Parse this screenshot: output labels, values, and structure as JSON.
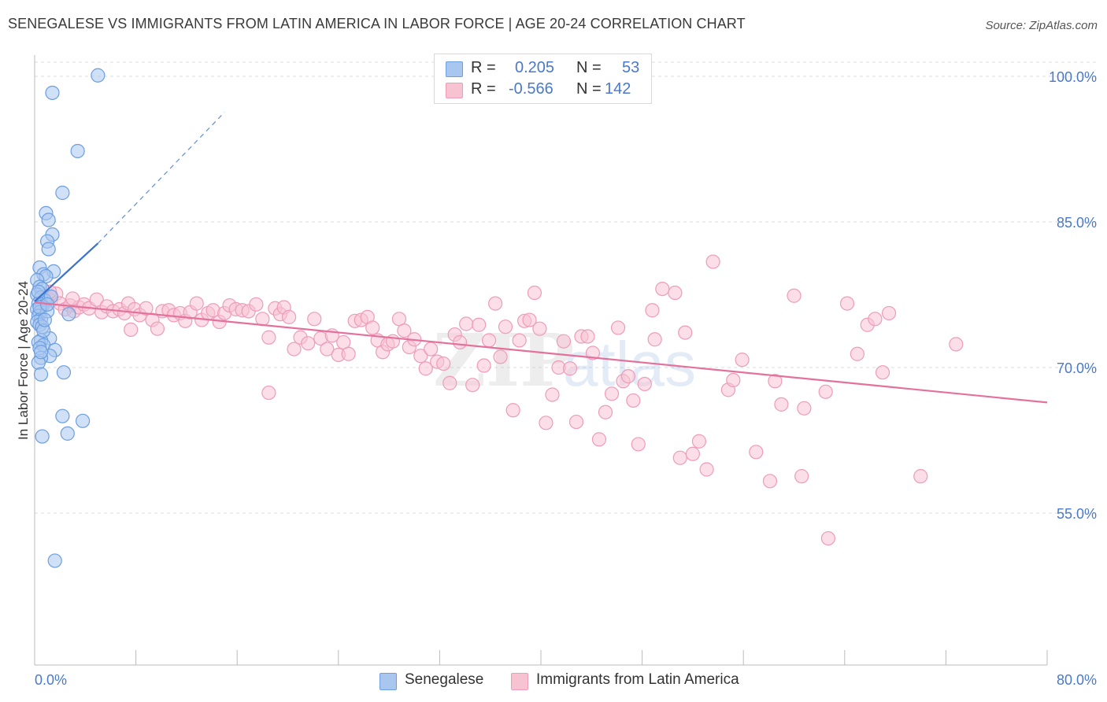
{
  "title": "SENEGALESE VS IMMIGRANTS FROM LATIN AMERICA IN LABOR FORCE | AGE 20-24 CORRELATION CHART",
  "source": "Source: ZipAtlas.com",
  "colors": {
    "senegalese_fill": "#a9c7ee",
    "senegalese_stroke": "#6c9ee0",
    "senegalese_line": "#3a72cc",
    "latin_fill": "#f7c3d3",
    "latin_stroke": "#ee9cb8",
    "latin_line": "#e4719c",
    "axis_text": "#4a79c9",
    "grid": "#dddddd"
  },
  "legend": {
    "rows": [
      {
        "r_label": "R =",
        "r_value": "0.205",
        "n_label": "N =",
        "n_value": "53"
      },
      {
        "r_label": "R =",
        "r_value": "-0.566",
        "n_label": "N =",
        "n_value": "142"
      }
    ]
  },
  "bottom_legend": [
    "Senegalese",
    "Immigrants from Latin America"
  ],
  "chart_data": {
    "type": "scatter",
    "title": "SENEGALESE VS IMMIGRANTS FROM LATIN AMERICA IN LABOR FORCE | AGE 20-24 CORRELATION CHART",
    "xlabel": "",
    "ylabel": "In Labor Force | Age 20-24",
    "xlim": [
      0,
      80
    ],
    "ylim": [
      41,
      102
    ],
    "x_tick_labels": [
      "0.0%",
      "80.0%"
    ],
    "y_tick_labels": [
      "55.0%",
      "70.0%",
      "85.0%",
      "100.0%"
    ],
    "y_ticks": [
      55,
      70,
      85,
      100
    ],
    "grid": true,
    "legend_position": "top-center",
    "series": [
      {
        "name": "Senegalese",
        "r": 0.205,
        "n": 53,
        "trend": {
          "x": [
            0.0,
            5.0
          ],
          "y": [
            76.8,
            82.8
          ],
          "dashed_to": {
            "x": 15.0,
            "y": 96.3
          }
        },
        "points": [
          [
            5.0,
            100.1
          ],
          [
            1.4,
            98.3
          ],
          [
            3.4,
            92.3
          ],
          [
            2.2,
            88.0
          ],
          [
            0.9,
            85.9
          ],
          [
            1.1,
            85.2
          ],
          [
            1.4,
            83.7
          ],
          [
            1.0,
            83.0
          ],
          [
            1.1,
            82.2
          ],
          [
            0.4,
            80.3
          ],
          [
            1.5,
            79.9
          ],
          [
            0.7,
            79.6
          ],
          [
            0.9,
            79.4
          ],
          [
            0.2,
            79.0
          ],
          [
            0.4,
            78.3
          ],
          [
            0.6,
            78.1
          ],
          [
            0.2,
            77.5
          ],
          [
            0.5,
            77.2
          ],
          [
            0.8,
            76.9
          ],
          [
            0.3,
            76.6
          ],
          [
            0.6,
            76.3
          ],
          [
            0.2,
            76.0
          ],
          [
            0.4,
            75.7
          ],
          [
            2.7,
            75.5
          ],
          [
            0.3,
            75.3
          ],
          [
            0.5,
            75.0
          ],
          [
            0.2,
            74.7
          ],
          [
            0.4,
            74.4
          ],
          [
            0.6,
            74.2
          ],
          [
            1.2,
            73.0
          ],
          [
            0.5,
            72.8
          ],
          [
            0.3,
            72.6
          ],
          [
            0.7,
            72.3
          ],
          [
            0.4,
            72.0
          ],
          [
            1.6,
            71.8
          ],
          [
            1.2,
            71.2
          ],
          [
            0.5,
            71.0
          ],
          [
            0.3,
            70.5
          ],
          [
            2.3,
            69.5
          ],
          [
            0.5,
            69.3
          ],
          [
            2.2,
            65.0
          ],
          [
            3.8,
            64.5
          ],
          [
            2.6,
            63.2
          ],
          [
            0.6,
            62.9
          ],
          [
            1.6,
            50.1
          ],
          [
            0.3,
            77.8
          ],
          [
            1.0,
            75.8
          ],
          [
            0.7,
            73.8
          ],
          [
            0.4,
            76.2
          ],
          [
            1.3,
            77.3
          ],
          [
            0.8,
            74.9
          ],
          [
            0.5,
            71.6
          ],
          [
            1.0,
            76.5
          ]
        ]
      },
      {
        "name": "Immigrants from Latin America",
        "r": -0.566,
        "n": 142,
        "trend": {
          "x": [
            0.0,
            80.0
          ],
          "y": [
            76.7,
            66.4
          ]
        },
        "points": [
          [
            0.6,
            76.5
          ],
          [
            1.0,
            77.3
          ],
          [
            1.3,
            76.9
          ],
          [
            1.7,
            77.6
          ],
          [
            2.0,
            76.6
          ],
          [
            2.4,
            76.0
          ],
          [
            2.8,
            76.4
          ],
          [
            3.1,
            75.8
          ],
          [
            3.5,
            76.2
          ],
          [
            3.9,
            76.5
          ],
          [
            4.3,
            76.1
          ],
          [
            4.9,
            77.0
          ],
          [
            5.3,
            75.7
          ],
          [
            5.7,
            76.3
          ],
          [
            6.2,
            75.8
          ],
          [
            6.7,
            76.0
          ],
          [
            7.1,
            75.6
          ],
          [
            7.4,
            76.6
          ],
          [
            7.9,
            76.0
          ],
          [
            8.3,
            75.4
          ],
          [
            8.8,
            76.1
          ],
          [
            9.3,
            74.9
          ],
          [
            9.7,
            74.0
          ],
          [
            10.1,
            75.8
          ],
          [
            10.6,
            75.9
          ],
          [
            11.0,
            75.4
          ],
          [
            11.5,
            75.6
          ],
          [
            11.9,
            74.8
          ],
          [
            12.3,
            75.7
          ],
          [
            12.8,
            76.6
          ],
          [
            13.2,
            74.9
          ],
          [
            13.7,
            75.6
          ],
          [
            14.1,
            75.9
          ],
          [
            14.6,
            74.7
          ],
          [
            15.0,
            75.6
          ],
          [
            15.4,
            76.4
          ],
          [
            15.9,
            76.0
          ],
          [
            16.4,
            75.9
          ],
          [
            16.9,
            75.8
          ],
          [
            17.5,
            76.5
          ],
          [
            18.0,
            75.0
          ],
          [
            18.5,
            73.1
          ],
          [
            19.0,
            76.1
          ],
          [
            19.4,
            75.5
          ],
          [
            19.7,
            76.2
          ],
          [
            20.1,
            75.2
          ],
          [
            20.5,
            71.9
          ],
          [
            21.0,
            73.1
          ],
          [
            21.6,
            72.5
          ],
          [
            22.1,
            75.0
          ],
          [
            22.6,
            73.0
          ],
          [
            23.1,
            71.9
          ],
          [
            23.5,
            73.3
          ],
          [
            24.0,
            71.3
          ],
          [
            24.4,
            72.6
          ],
          [
            24.8,
            71.4
          ],
          [
            25.3,
            74.8
          ],
          [
            25.8,
            74.9
          ],
          [
            26.3,
            75.2
          ],
          [
            26.7,
            74.1
          ],
          [
            27.1,
            72.8
          ],
          [
            27.5,
            71.6
          ],
          [
            27.9,
            72.4
          ],
          [
            28.3,
            72.7
          ],
          [
            28.8,
            75.0
          ],
          [
            29.2,
            73.8
          ],
          [
            29.6,
            72.1
          ],
          [
            30.0,
            72.9
          ],
          [
            30.5,
            71.2
          ],
          [
            30.9,
            69.9
          ],
          [
            31.3,
            71.9
          ],
          [
            31.8,
            70.6
          ],
          [
            32.3,
            70.4
          ],
          [
            32.8,
            68.4
          ],
          [
            33.2,
            73.4
          ],
          [
            33.6,
            72.6
          ],
          [
            34.1,
            74.5
          ],
          [
            34.6,
            68.2
          ],
          [
            35.1,
            74.4
          ],
          [
            35.5,
            70.2
          ],
          [
            35.9,
            72.8
          ],
          [
            36.4,
            76.6
          ],
          [
            36.8,
            71.1
          ],
          [
            37.2,
            74.2
          ],
          [
            37.8,
            65.6
          ],
          [
            38.3,
            72.8
          ],
          [
            38.7,
            74.8
          ],
          [
            39.1,
            74.9
          ],
          [
            39.5,
            77.7
          ],
          [
            39.9,
            74.0
          ],
          [
            40.4,
            64.3
          ],
          [
            40.9,
            67.2
          ],
          [
            41.4,
            70.0
          ],
          [
            41.8,
            72.7
          ],
          [
            42.3,
            69.9
          ],
          [
            42.8,
            64.4
          ],
          [
            43.2,
            73.2
          ],
          [
            43.7,
            73.2
          ],
          [
            44.1,
            71.5
          ],
          [
            44.6,
            62.6
          ],
          [
            45.1,
            65.4
          ],
          [
            45.6,
            67.3
          ],
          [
            46.1,
            74.1
          ],
          [
            46.5,
            68.6
          ],
          [
            46.9,
            69.1
          ],
          [
            47.3,
            66.6
          ],
          [
            47.7,
            62.1
          ],
          [
            48.2,
            68.3
          ],
          [
            48.8,
            75.9
          ],
          [
            49.0,
            72.9
          ],
          [
            49.6,
            78.1
          ],
          [
            50.6,
            77.7
          ],
          [
            51.0,
            60.7
          ],
          [
            51.4,
            73.6
          ],
          [
            52.0,
            61.1
          ],
          [
            52.5,
            62.4
          ],
          [
            53.1,
            59.5
          ],
          [
            53.6,
            80.9
          ],
          [
            54.8,
            67.7
          ],
          [
            55.2,
            68.7
          ],
          [
            55.9,
            70.8
          ],
          [
            57.0,
            61.3
          ],
          [
            58.1,
            58.3
          ],
          [
            58.5,
            68.6
          ],
          [
            59.0,
            66.2
          ],
          [
            60.0,
            77.4
          ],
          [
            60.6,
            58.8
          ],
          [
            60.8,
            65.8
          ],
          [
            62.5,
            67.5
          ],
          [
            62.7,
            52.4
          ],
          [
            64.2,
            76.6
          ],
          [
            65.0,
            71.4
          ],
          [
            65.8,
            74.4
          ],
          [
            66.4,
            75.0
          ],
          [
            67.0,
            69.5
          ],
          [
            67.5,
            75.6
          ],
          [
            70.0,
            58.8
          ],
          [
            72.8,
            72.4
          ],
          [
            18.5,
            67.4
          ],
          [
            7.6,
            73.9
          ],
          [
            3.0,
            77.1
          ],
          [
            1.2,
            77.8
          ]
        ]
      }
    ]
  }
}
